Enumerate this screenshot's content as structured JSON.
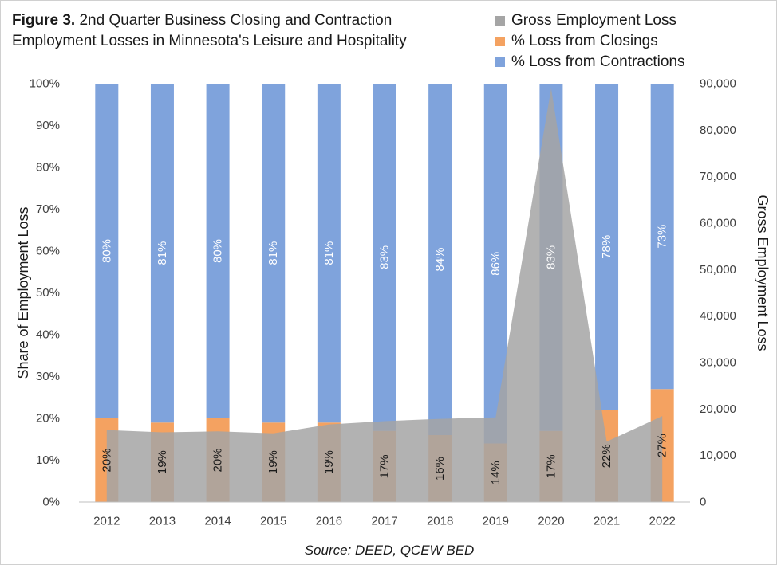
{
  "title": {
    "prefix": "Figure 3.",
    "text": "2nd Quarter Business Closing and Contraction Employment Losses in Minnesota's Leisure and Hospitality"
  },
  "legend": [
    {
      "label": "Gross Employment Loss",
      "color": "#a5a5a5"
    },
    {
      "label": "% Loss from Closings",
      "color": "#f4a261"
    },
    {
      "label": "% Loss from Contractions",
      "color": "#7fa3dc"
    }
  ],
  "source": "Source: DEED, QCEW BED",
  "chart_data": {
    "type": "bar",
    "subtype": "stacked-100-percent-bar-with-area",
    "categories": [
      "2012",
      "2013",
      "2014",
      "2015",
      "2016",
      "2017",
      "2018",
      "2019",
      "2020",
      "2021",
      "2022"
    ],
    "series": [
      {
        "name": "% Loss from Closings",
        "axis": "left",
        "values": [
          20,
          19,
          20,
          19,
          19,
          17,
          16,
          14,
          17,
          22,
          27
        ],
        "labels": [
          "20%",
          "19%",
          "20%",
          "19%",
          "19%",
          "17%",
          "16%",
          "14%",
          "17%",
          "22%",
          "27%"
        ],
        "color": "#f4a261"
      },
      {
        "name": "% Loss from Contractions",
        "axis": "left",
        "values": [
          80,
          81,
          80,
          81,
          81,
          83,
          84,
          86,
          83,
          78,
          73
        ],
        "labels": [
          "80%",
          "81%",
          "80%",
          "81%",
          "81%",
          "83%",
          "84%",
          "86%",
          "83%",
          "78%",
          "73%"
        ],
        "color": "#7fa3dc"
      },
      {
        "name": "Gross Employment Loss",
        "axis": "right",
        "type": "area",
        "values": [
          15500,
          15000,
          15200,
          14800,
          16700,
          17400,
          17900,
          18200,
          89000,
          13000,
          18500
        ],
        "color": "#a5a5a5"
      }
    ],
    "y_left": {
      "label": "Share of Employment Loss",
      "range": [
        0,
        100
      ],
      "ticks": [
        "0%",
        "10%",
        "20%",
        "30%",
        "40%",
        "50%",
        "60%",
        "70%",
        "80%",
        "90%",
        "100%"
      ]
    },
    "y_right": {
      "label": "Gross Employment Loss",
      "range": [
        0,
        90000
      ],
      "ticks": [
        "0",
        "10,000",
        "20,000",
        "30,000",
        "40,000",
        "50,000",
        "60,000",
        "70,000",
        "80,000",
        "90,000"
      ]
    },
    "grid": false,
    "legend_position": "top-right"
  }
}
